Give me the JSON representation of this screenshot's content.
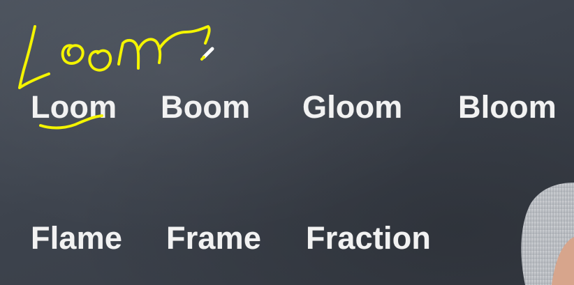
{
  "handwriting": {
    "text": "Loom",
    "ink_color": "#f4f400"
  },
  "words": {
    "row1": [
      "Loom",
      "Boom",
      "Gloom",
      "Bloom"
    ],
    "row2": [
      "Flame",
      "Frame",
      "Fraction"
    ]
  },
  "colors": {
    "board": "#3f4550",
    "chalk_text": "#f2f2f2",
    "highlight": "#f4f400"
  },
  "icons": {
    "cursor": "pen-cursor-icon"
  }
}
